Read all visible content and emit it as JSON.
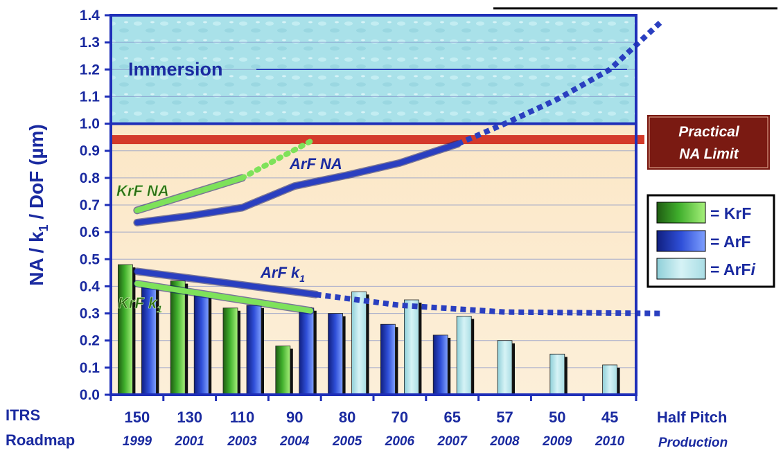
{
  "chart_data": {
    "type": "bar",
    "ylabel": "NA / k1 / DoF (µm)",
    "ylim": [
      0,
      1.4
    ],
    "yticks": [
      "0.0",
      "0.1",
      "0.2",
      "0.3",
      "0.4",
      "0.5",
      "0.6",
      "0.7",
      "0.8",
      "0.9",
      "1.0",
      "1.1",
      "1.2",
      "1.3",
      "1.4"
    ],
    "categories": [
      "150",
      "130",
      "110",
      "90",
      "80",
      "70",
      "65",
      "57",
      "50",
      "45"
    ],
    "years": [
      "1999",
      "2001",
      "2003",
      "2004",
      "2005",
      "2006",
      "2007",
      "2008",
      "2009",
      "2010"
    ],
    "left_labels": [
      "ITRS",
      "Roadmap"
    ],
    "right_labels": [
      "Half Pitch",
      "Production"
    ],
    "series": [
      {
        "name": "KrF",
        "values": [
          0.48,
          0.42,
          0.32,
          0.18,
          null,
          null,
          null,
          null,
          null,
          null
        ]
      },
      {
        "name": "ArF",
        "values": [
          0.4,
          0.37,
          0.33,
          0.32,
          0.3,
          0.26,
          0.22,
          null,
          null,
          null
        ]
      },
      {
        "name": "ArFi",
        "values": [
          null,
          null,
          null,
          null,
          0.38,
          0.35,
          0.29,
          0.2,
          0.15,
          0.11
        ]
      }
    ],
    "lines": [
      {
        "name": "KrF NA",
        "points": [
          [
            0,
            0.68
          ],
          [
            2,
            0.8
          ]
        ],
        "dotted_points": [
          [
            2,
            0.8
          ],
          [
            3.35,
            0.94
          ]
        ]
      },
      {
        "name": "ArF NA",
        "points": [
          [
            0,
            0.635
          ],
          [
            1,
            0.66
          ],
          [
            2,
            0.69
          ],
          [
            3,
            0.77
          ],
          [
            4,
            0.81
          ],
          [
            5,
            0.855
          ],
          [
            6.1,
            0.925
          ]
        ],
        "dotted_points": [
          [
            6.1,
            0.925
          ],
          [
            7,
            1.0
          ],
          [
            8,
            1.09
          ],
          [
            9,
            1.2
          ],
          [
            10,
            1.38
          ]
        ]
      },
      {
        "name": "KrF k1",
        "points": [
          [
            0,
            0.41
          ],
          [
            3.3,
            0.31
          ]
        ]
      },
      {
        "name": "ArF k1",
        "points": [
          [
            0,
            0.455
          ],
          [
            3.4,
            0.37
          ]
        ],
        "dotted_points": [
          [
            3.4,
            0.37
          ],
          [
            5,
            0.33
          ],
          [
            7,
            0.305
          ],
          [
            10,
            0.3
          ]
        ]
      }
    ],
    "regions": [
      {
        "label": "Immersion",
        "from": 1.0,
        "to": 1.4
      }
    ],
    "limit_line": {
      "value": 0.94,
      "label_lines": [
        "Practical",
        "NA Limit"
      ]
    },
    "legend": {
      "position": "right",
      "items": [
        {
          "name": "KrF",
          "label": "= KrF"
        },
        {
          "name": "ArF",
          "label": "= ArF"
        },
        {
          "name": "ArFi",
          "label": "= ArF",
          "label_italic": "i"
        }
      ]
    },
    "annotations": {
      "immersion": "Immersion",
      "krf_na": "KrF NA",
      "arf_na": "ArF NA",
      "krf_k1_base": "KrF k",
      "arf_k1_base": "ArF k",
      "k1_sub": "1"
    },
    "colors": {
      "axis": "#1a2aa0",
      "krf": "#3fae2c",
      "arf": "#2f4fd8",
      "arfi": "#bfe8ee",
      "limit_bar": "#d43a2a",
      "limit_box": "#7a1a12",
      "immersion": "#a7e0e8",
      "background": "#fbe6c4",
      "krf_line": "#7ee25a",
      "arf_line": "#2a3fc0"
    }
  }
}
